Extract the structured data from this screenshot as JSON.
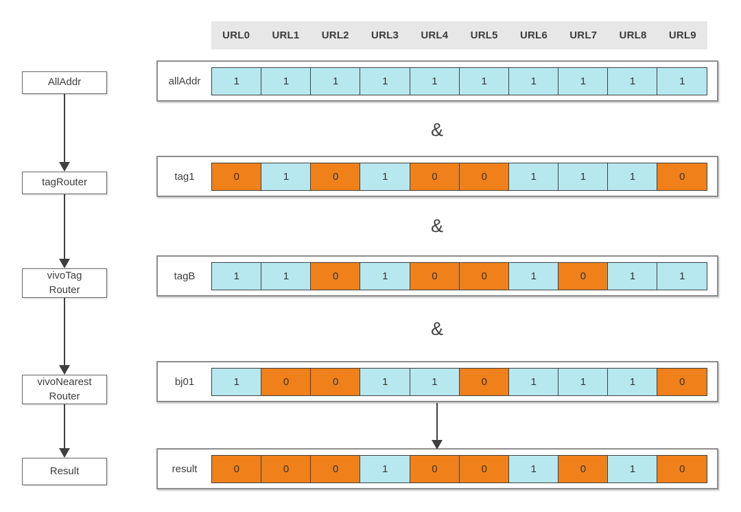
{
  "header": {
    "columns": [
      "URL0",
      "URL1",
      "URL2",
      "URL3",
      "URL4",
      "URL5",
      "URL6",
      "URL7",
      "URL8",
      "URL9"
    ]
  },
  "flowchart": {
    "nodes": [
      {
        "id": "alladdr",
        "lines": [
          "AllAddr"
        ]
      },
      {
        "id": "tagrouter",
        "lines": [
          "tagRouter"
        ]
      },
      {
        "id": "vivotag-router",
        "lines": [
          "vivoTag",
          "Router"
        ]
      },
      {
        "id": "vivonearest-router",
        "lines": [
          "vivoNearest",
          "Router"
        ]
      },
      {
        "id": "result",
        "lines": [
          "Result"
        ]
      }
    ]
  },
  "bitmap_rows": [
    {
      "label": "allAddr",
      "values": [
        1,
        1,
        1,
        1,
        1,
        1,
        1,
        1,
        1,
        1
      ]
    },
    {
      "label": "tag1",
      "values": [
        0,
        1,
        0,
        1,
        0,
        0,
        1,
        1,
        1,
        0
      ]
    },
    {
      "label": "tagB",
      "values": [
        1,
        1,
        0,
        1,
        0,
        0,
        1,
        0,
        1,
        1
      ]
    },
    {
      "label": "bj01",
      "values": [
        1,
        0,
        0,
        1,
        1,
        0,
        1,
        1,
        1,
        0
      ]
    },
    {
      "label": "result",
      "values": [
        0,
        0,
        0,
        1,
        0,
        0,
        1,
        0,
        1,
        0
      ]
    }
  ],
  "operator_symbol": "&",
  "colors": {
    "one_cell_bg": "#B7E8F0",
    "zero_cell_bg": "#F0801A",
    "header_bg": "#E7E7E7",
    "arrow": "#3F3F3F"
  }
}
